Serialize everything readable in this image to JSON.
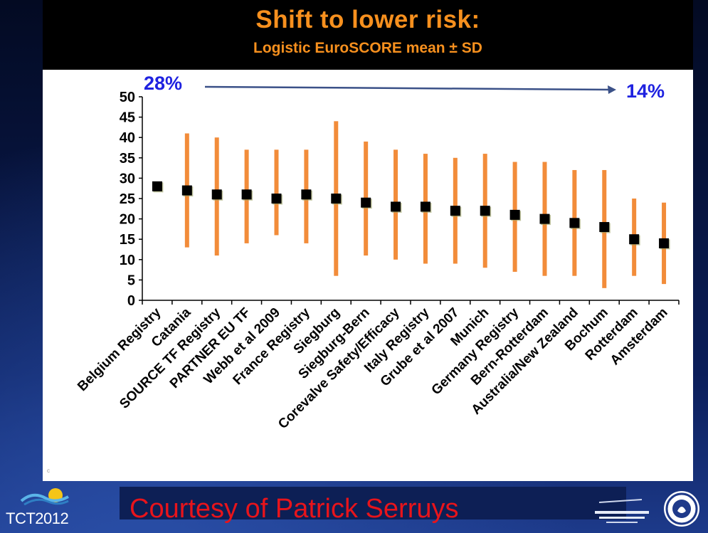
{
  "slide": {
    "title": "Shift to lower risk:",
    "subtitle": "Logistic EuroSCORE mean ± SD",
    "courtesy": "Courtesy of Patrick Serruys",
    "conference_label": "TCT2012"
  },
  "chart_data": {
    "type": "scatter",
    "title": "Shift to lower risk:",
    "subtitle": "Logistic EuroSCORE mean ± SD",
    "xlabel": "",
    "ylabel": "",
    "ylim": [
      0,
      50
    ],
    "yticks": [
      0,
      5,
      10,
      15,
      20,
      25,
      30,
      35,
      40,
      45,
      50
    ],
    "grid": false,
    "legend": "none",
    "categories": [
      "Belgium Registry",
      "Catania",
      "SOURCE TF Registry",
      "PARTNER EU TF",
      "Webb et al 2009",
      "France Registry",
      "Siegburg",
      "Siegburg-Bern",
      "Corevalve Safety/Efficacy",
      "Italy Registry",
      "Grube et al 2007",
      "Munich",
      "Germany Registry",
      "Bern-Rotterdam",
      "Australia/New Zealand",
      "Bochum",
      "Rotterdam",
      "Amsterdam"
    ],
    "series": [
      {
        "mean": [
          28,
          27,
          26,
          26,
          25,
          26,
          25,
          24,
          23,
          23,
          22,
          22,
          21,
          20,
          19,
          18,
          15,
          14
        ],
        "low": [
          27,
          13,
          11,
          14,
          16,
          14,
          6,
          11,
          10,
          9,
          9,
          8,
          7,
          6,
          6,
          3,
          6,
          4
        ],
        "high": [
          28,
          41,
          40,
          37,
          37,
          37,
          44,
          39,
          37,
          36,
          35,
          36,
          34,
          34,
          32,
          32,
          25,
          24
        ]
      }
    ],
    "annotation": {
      "start_label": "28%",
      "end_label": "14%"
    },
    "colors": {
      "error_bar": "#f28c3a",
      "marker": "#000000",
      "annotation": "#1f22e0",
      "arrow": "#3b5188"
    }
  }
}
